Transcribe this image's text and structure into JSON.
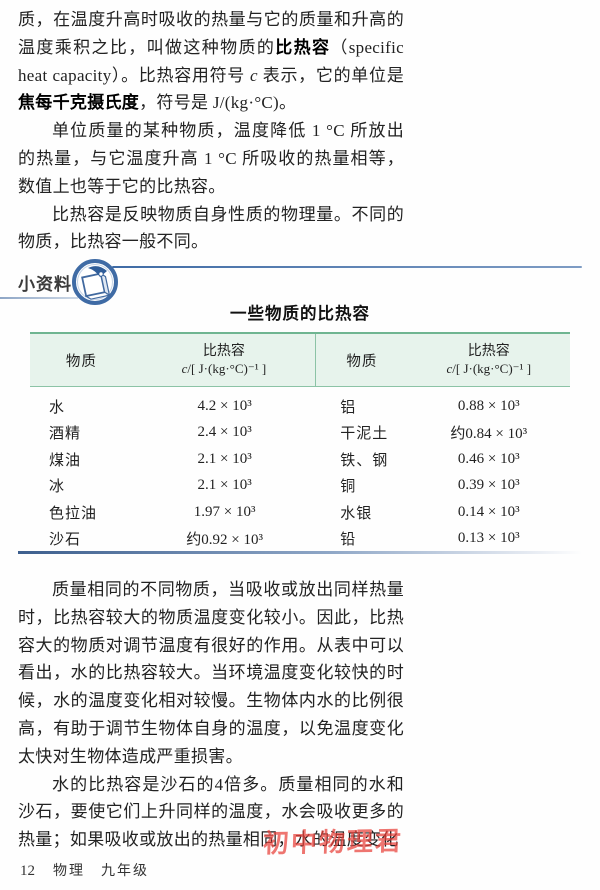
{
  "colors": {
    "table_header_bg": "#e7f3ec",
    "table_border_green": "#6fb591",
    "table_divider_green": "#8cc3a6",
    "accent_blue": "#3f6ba5",
    "closing_rule_blue": "#3d5f8e",
    "watermark_red": "#e8413a",
    "text": "#222222"
  },
  "sidebar": {
    "label": "小资料",
    "icon": "notebook-pen-icon"
  },
  "content": {
    "top_paragraphs": [
      {
        "indent": false,
        "segments": [
          {
            "t": "质，在温度升高时吸收的热量与它的质量和升高的温度乘积之比，叫做这种物质的"
          },
          {
            "t": "比热容",
            "b": true
          },
          {
            "t": "（specific heat capacity）。比热容用符号 "
          },
          {
            "t": "c",
            "i": true
          },
          {
            "t": " 表示，它的单位是"
          },
          {
            "t": "焦每千克摄氏度",
            "b": true
          },
          {
            "t": "，符号是 J/(kg·°C)。"
          }
        ]
      },
      {
        "indent": true,
        "segments": [
          {
            "t": "单位质量的某种物质，温度降低 1 °C 所放出的热量，与它温度升高 1 °C 所吸收的热量相等，数值上也等于它的比热容。"
          }
        ]
      },
      {
        "indent": true,
        "segments": [
          {
            "t": "比热容是反映物质自身性质的物理量。不同的物质，比热容一般不同。"
          }
        ]
      }
    ],
    "bottom_paragraphs": [
      {
        "indent": true,
        "segments": [
          {
            "t": "质量相同的不同物质，当吸收或放出同样热量时，比热容较大的物质温度变化较小。因此，比热容大的物质对调节温度有很好的作用。从表中可以看出，水的比热容较大。当环境温度变化较快的时候，水的温度变化相对较慢。生物体内水的比例很高，有助于调节生物体自身的温度，以免温度变化太快对生物体造成严重损害。"
          }
        ]
      },
      {
        "indent": true,
        "segments": [
          {
            "t": "水的比热容是沙石的4倍多。质量相同的水和沙石，要使它们上升同样的温度，水会吸收更多的热量；如果吸收或放出的热量相同，水的温度变化"
          }
        ]
      }
    ]
  },
  "table": {
    "title": "一些物质的比热容",
    "header": {
      "substance": "物质",
      "capacity": "比热容",
      "unit_c": "c",
      "unit_rest": "/[ J·(kg·°C)⁻¹ ]"
    },
    "left_rows": [
      {
        "substance": "水",
        "value": "4.2 × 10³"
      },
      {
        "substance": "酒精",
        "value": "2.4 × 10³"
      },
      {
        "substance": "煤油",
        "value": "2.1 × 10³"
      },
      {
        "substance": "冰",
        "value": "2.1 × 10³"
      },
      {
        "substance": "色拉油",
        "value": "1.97 × 10³"
      },
      {
        "substance": "沙石",
        "value": "约0.92 × 10³"
      }
    ],
    "right_rows": [
      {
        "substance": "铝",
        "value": "0.88 × 10³"
      },
      {
        "substance": "干泥土",
        "value": "约0.84 × 10³"
      },
      {
        "substance": "铁、钢",
        "value": "0.46 × 10³"
      },
      {
        "substance": "铜",
        "value": "0.39 × 10³"
      },
      {
        "substance": "水银",
        "value": "0.14 × 10³"
      },
      {
        "substance": "铅",
        "value": "0.13 × 10³"
      }
    ]
  },
  "watermark": {
    "text": "初中物理君"
  },
  "footer": {
    "page_number": "12",
    "subject": "物理",
    "grade": "九年级"
  }
}
